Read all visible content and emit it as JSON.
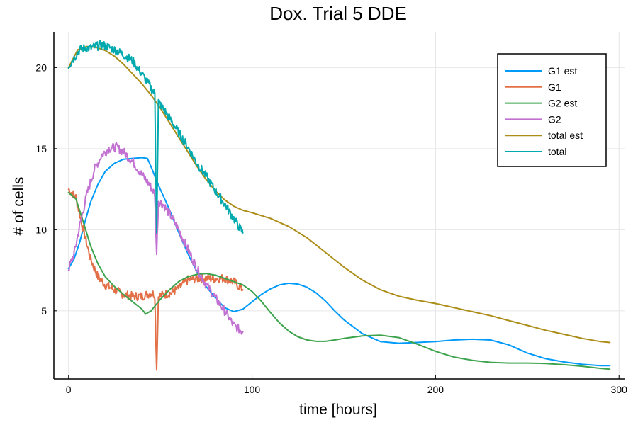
{
  "chart_data": {
    "type": "line",
    "title": "Dox. Trial 5 DDE",
    "xlabel": "time [hours]",
    "ylabel": "# of cells",
    "xlim": [
      -8,
      303
    ],
    "ylim": [
      0.8,
      22.2
    ],
    "xticks": [
      0,
      100,
      200,
      300
    ],
    "yticks": [
      5,
      10,
      15,
      20
    ],
    "grid": true,
    "legend_position": "top-right",
    "series": [
      {
        "name": "G1 est",
        "color": "#009af9",
        "noisy": false,
        "x": [
          0,
          3,
          6,
          9,
          12,
          16,
          20,
          25,
          30,
          35,
          40,
          43,
          46,
          48,
          50,
          54,
          58,
          62,
          66,
          70,
          75,
          80,
          85,
          90,
          95,
          100,
          105,
          110,
          115,
          120,
          125,
          130,
          135,
          140,
          145,
          150,
          160,
          170,
          180,
          190,
          200,
          210,
          220,
          230,
          240,
          250,
          260,
          270,
          280,
          290,
          295
        ],
        "y": [
          7.6,
          8.2,
          9.2,
          10.5,
          11.7,
          12.8,
          13.6,
          14.1,
          14.35,
          14.4,
          14.45,
          14.4,
          13.6,
          13.0,
          12.5,
          11.5,
          10.4,
          9.3,
          8.3,
          7.4,
          6.5,
          5.8,
          5.2,
          4.95,
          5.1,
          5.55,
          6.0,
          6.35,
          6.6,
          6.7,
          6.65,
          6.45,
          6.1,
          5.6,
          5.0,
          4.45,
          3.6,
          3.1,
          3.0,
          3.05,
          3.1,
          3.2,
          3.25,
          3.2,
          2.9,
          2.4,
          2.05,
          1.85,
          1.7,
          1.62,
          1.62
        ]
      },
      {
        "name": "G1",
        "color": "#e26f46",
        "noisy": true,
        "x": [
          0,
          4,
          8,
          12,
          16,
          20,
          25,
          30,
          35,
          40,
          45,
          47,
          48,
          49,
          52,
          56,
          60,
          65,
          70,
          75,
          80,
          85,
          90,
          95
        ],
        "y": [
          12.5,
          12.0,
          10.0,
          8.2,
          7.1,
          6.6,
          6.3,
          6.0,
          5.9,
          5.9,
          6.1,
          6.0,
          1.4,
          5.9,
          6.0,
          6.1,
          6.4,
          6.9,
          7.0,
          7.0,
          7.0,
          7.0,
          6.8,
          6.3
        ]
      },
      {
        "name": "G2 est",
        "color": "#3da44d",
        "noisy": false,
        "x": [
          0,
          4,
          8,
          12,
          16,
          20,
          25,
          30,
          35,
          40,
          42,
          45,
          50,
          55,
          60,
          65,
          70,
          75,
          80,
          85,
          90,
          95,
          100,
          105,
          110,
          115,
          120,
          125,
          130,
          135,
          140,
          145,
          150,
          160,
          170,
          180,
          190,
          200,
          210,
          220,
          230,
          240,
          250,
          260,
          270,
          280,
          290,
          295
        ],
        "y": [
          12.3,
          11.9,
          10.5,
          9.0,
          7.9,
          7.1,
          6.5,
          6.0,
          5.55,
          5.1,
          4.8,
          5.0,
          5.7,
          6.3,
          6.8,
          7.1,
          7.25,
          7.3,
          7.2,
          7.0,
          6.8,
          6.6,
          6.2,
          5.6,
          4.9,
          4.25,
          3.75,
          3.4,
          3.2,
          3.12,
          3.12,
          3.2,
          3.3,
          3.45,
          3.5,
          3.35,
          2.95,
          2.5,
          2.15,
          1.95,
          1.82,
          1.78,
          1.78,
          1.75,
          1.68,
          1.58,
          1.45,
          1.4
        ]
      },
      {
        "name": "G2",
        "color": "#c271d2",
        "noisy": true,
        "x": [
          0,
          3,
          6,
          10,
          14,
          18,
          22,
          26,
          30,
          35,
          40,
          44,
          47,
          48,
          49,
          52,
          56,
          60,
          65,
          70,
          75,
          80,
          85,
          90,
          95
        ],
        "y": [
          7.6,
          8.5,
          10.2,
          12.2,
          13.7,
          14.6,
          15.0,
          15.1,
          14.8,
          14.2,
          13.4,
          12.8,
          12.2,
          8.5,
          11.8,
          11.5,
          10.8,
          10.0,
          8.8,
          7.6,
          6.6,
          5.8,
          5.0,
          4.1,
          3.7
        ]
      },
      {
        "name": "total est",
        "color": "#ac8d18",
        "noisy": false,
        "x": [
          0,
          5,
          10,
          15,
          20,
          25,
          30,
          35,
          40,
          45,
          50,
          55,
          60,
          65,
          70,
          75,
          80,
          85,
          90,
          95,
          100,
          110,
          120,
          130,
          140,
          150,
          160,
          170,
          180,
          190,
          200,
          210,
          220,
          230,
          240,
          250,
          260,
          270,
          280,
          290,
          295
        ],
        "y": [
          20.0,
          21.1,
          21.3,
          21.25,
          21.05,
          20.7,
          20.2,
          19.6,
          19.0,
          18.3,
          17.5,
          16.6,
          15.7,
          14.8,
          13.9,
          13.1,
          12.4,
          11.85,
          11.45,
          11.2,
          11.05,
          10.7,
          10.2,
          9.5,
          8.6,
          7.7,
          6.9,
          6.3,
          5.9,
          5.65,
          5.45,
          5.2,
          4.95,
          4.7,
          4.4,
          4.1,
          3.8,
          3.55,
          3.3,
          3.1,
          3.05
        ]
      },
      {
        "name": "total",
        "color": "#00a9ad",
        "noisy": true,
        "x": [
          0,
          3,
          6,
          9,
          12,
          15,
          18,
          21,
          25,
          30,
          35,
          40,
          44,
          47,
          48,
          49,
          52,
          56,
          60,
          65,
          70,
          75,
          80,
          85,
          90,
          95
        ],
        "y": [
          20.1,
          20.6,
          21.1,
          21.2,
          21.2,
          21.3,
          21.4,
          21.3,
          21.1,
          20.8,
          20.4,
          19.6,
          18.9,
          18.4,
          10.0,
          17.9,
          17.4,
          16.7,
          16.0,
          15.1,
          14.1,
          13.3,
          12.4,
          11.6,
          10.7,
          9.8
        ]
      }
    ]
  }
}
